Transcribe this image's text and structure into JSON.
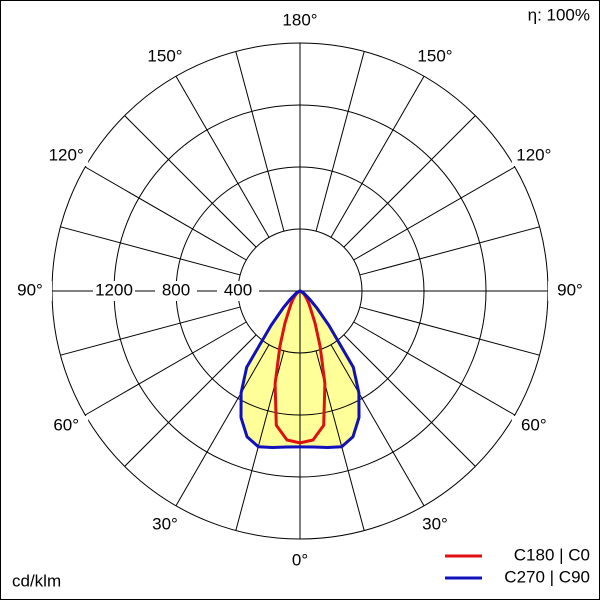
{
  "chart_data": {
    "type": "polar",
    "title": "η: 100%",
    "unit_label": "cd/klm",
    "theta": [
      0,
      5,
      10,
      15,
      20,
      25,
      30,
      35,
      40,
      45,
      50,
      60,
      70,
      80,
      90
    ],
    "series": [
      {
        "name": "C180 | C0",
        "color": "#dd1111",
        "values": [
          980,
          965,
          880,
          620,
          380,
          230,
          140,
          100,
          70,
          50,
          35,
          15,
          5,
          0,
          0
        ]
      },
      {
        "name": "C270 | C90",
        "color": "#1111bb",
        "values": [
          1006,
          1010,
          1025,
          1040,
          1000,
          900,
          760,
          600,
          290,
          150,
          80,
          30,
          10,
          0,
          0
        ],
        "fill": "#ffff99"
      }
    ],
    "rlim": [
      0,
      1600
    ],
    "rticks": [
      400,
      800,
      1200
    ],
    "thetagrid": [
      0,
      15,
      30,
      45,
      60,
      75,
      90,
      105,
      120,
      135,
      150,
      165,
      180
    ],
    "thetaticks": [
      {
        "value": 0,
        "label": "0°"
      },
      {
        "value": 30,
        "label": "30°"
      },
      {
        "value": 60,
        "label": "60°"
      },
      {
        "value": 90,
        "label": "90°"
      },
      {
        "value": 120,
        "label": "120°"
      },
      {
        "value": 150,
        "label": "150°"
      },
      {
        "value": 180,
        "label": "180°"
      }
    ]
  }
}
